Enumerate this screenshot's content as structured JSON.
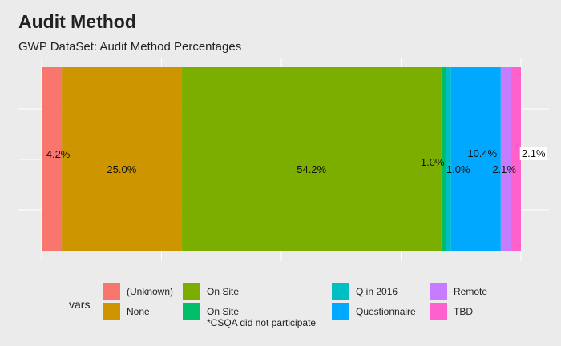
{
  "title": "Audit Method",
  "subtitle": "GWP DataSet: Audit Method Percentages",
  "chart_data": {
    "type": "bar",
    "orientation": "horizontal-stacked",
    "legend_title": "vars",
    "legend_position": "bottom",
    "grid": true,
    "xlim": [
      0,
      100
    ],
    "series": [
      {
        "name": "(Unknown)",
        "value": 4.2,
        "label": "4.2%",
        "color": "#f8766d"
      },
      {
        "name": "None",
        "value": 25.0,
        "label": "25.0%",
        "color": "#cd9600"
      },
      {
        "name": "On Site",
        "value": 54.2,
        "label": "54.2%",
        "color": "#7cae00"
      },
      {
        "name": "On Site\n*CSQA did not participate",
        "value": 1.0,
        "label": "1.0%",
        "color": "#00be67"
      },
      {
        "name": "Q in 2016",
        "value": 1.0,
        "label": "1.0%",
        "color": "#00bfc4"
      },
      {
        "name": "Questionnaire",
        "value": 10.4,
        "label": "10.4%",
        "color": "#00a9ff"
      },
      {
        "name": "Remote",
        "value": 2.1,
        "label": "2.1%",
        "color": "#c77cff"
      },
      {
        "name": "TBD",
        "value": 2.1,
        "label": "2.1%",
        "color": "#ff61cc"
      }
    ]
  }
}
